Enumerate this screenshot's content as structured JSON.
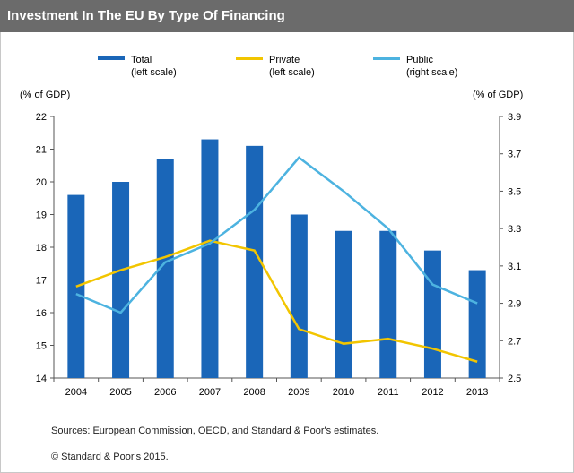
{
  "header": {
    "title": "Investment In The EU By Type Of Financing"
  },
  "footer": {
    "sources": "Sources: European Commission, OECD, and Standard & Poor's estimates.",
    "copyright": "© Standard & Poor's 2015."
  },
  "chart_data": {
    "type": "bar",
    "title": "Investment In The EU By Type Of Financing",
    "categories": [
      "2004",
      "2005",
      "2006",
      "2007",
      "2008",
      "2009",
      "2010",
      "2011",
      "2012",
      "2013"
    ],
    "ylabel_left": "(% of GDP)",
    "ylabel_right": "(% of GDP)",
    "ylim_left": [
      14,
      22
    ],
    "ylim_right": [
      2.5,
      3.9
    ],
    "yticks_left": [
      "14",
      "15",
      "16",
      "17",
      "18",
      "19",
      "20",
      "21",
      "22"
    ],
    "yticks_right": [
      "2.5",
      "2.7",
      "2.9",
      "3.1",
      "3.3",
      "3.5",
      "3.7",
      "3.9"
    ],
    "grid": false,
    "legend_position": "top",
    "series": [
      {
        "name": "Total",
        "name_sub": "(left scale)",
        "type": "bar",
        "axis": "left",
        "color": "#1a66b8",
        "values": [
          19.6,
          20.0,
          20.7,
          21.3,
          21.1,
          19.0,
          18.5,
          18.5,
          17.9,
          17.3
        ]
      },
      {
        "name": "Private",
        "name_sub": "(left scale)",
        "type": "line",
        "axis": "left",
        "color": "#f2c500",
        "values": [
          16.8,
          17.3,
          17.7,
          18.2,
          17.9,
          15.5,
          15.05,
          15.2,
          14.9,
          14.5
        ]
      },
      {
        "name": "Public",
        "name_sub": "(right scale)",
        "type": "line",
        "axis": "right",
        "color": "#4db3e0",
        "values": [
          2.95,
          2.85,
          3.12,
          3.22,
          3.4,
          3.68,
          3.5,
          3.3,
          3.0,
          2.9
        ]
      }
    ]
  }
}
